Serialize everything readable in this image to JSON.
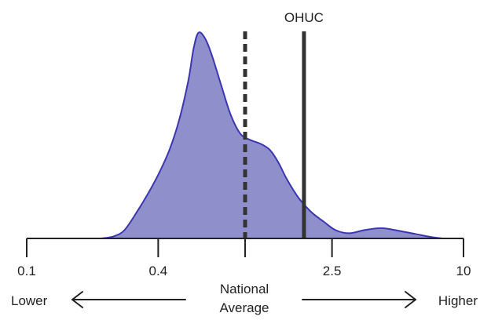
{
  "colors": {
    "density_fill": "#8f8fcc",
    "density_stroke": "#3b36b0",
    "reference_lines": "#333333",
    "axis": "#222222",
    "text": "#222222"
  },
  "chart_data": {
    "type": "area",
    "x_scale": "log",
    "xlim": [
      0.1,
      10
    ],
    "ylim": [
      0,
      1
    ],
    "x_ticks": [
      {
        "value": 0.1,
        "label": "0.1"
      },
      {
        "value": 0.4,
        "label": "0.4"
      },
      {
        "value": 1,
        "label": ""
      },
      {
        "value": 2.5,
        "label": "2.5"
      },
      {
        "value": 10,
        "label": "10"
      }
    ],
    "density": [
      {
        "x": 0.22,
        "y": 0.0
      },
      {
        "x": 0.25,
        "y": 0.01
      },
      {
        "x": 0.28,
        "y": 0.04
      },
      {
        "x": 0.32,
        "y": 0.13
      },
      {
        "x": 0.36,
        "y": 0.22
      },
      {
        "x": 0.4,
        "y": 0.31
      },
      {
        "x": 0.45,
        "y": 0.43
      },
      {
        "x": 0.5,
        "y": 0.58
      },
      {
        "x": 0.55,
        "y": 0.77
      },
      {
        "x": 0.58,
        "y": 0.92
      },
      {
        "x": 0.61,
        "y": 1.0
      },
      {
        "x": 0.65,
        "y": 0.98
      },
      {
        "x": 0.7,
        "y": 0.9
      },
      {
        "x": 0.78,
        "y": 0.74
      },
      {
        "x": 0.86,
        "y": 0.6
      },
      {
        "x": 0.95,
        "y": 0.51
      },
      {
        "x": 1.05,
        "y": 0.48
      },
      {
        "x": 1.18,
        "y": 0.46
      },
      {
        "x": 1.3,
        "y": 0.43
      },
      {
        "x": 1.42,
        "y": 0.37
      },
      {
        "x": 1.55,
        "y": 0.29
      },
      {
        "x": 1.75,
        "y": 0.2
      },
      {
        "x": 2.0,
        "y": 0.13
      },
      {
        "x": 2.3,
        "y": 0.08
      },
      {
        "x": 2.6,
        "y": 0.04
      },
      {
        "x": 3.0,
        "y": 0.025
      },
      {
        "x": 3.5,
        "y": 0.04
      },
      {
        "x": 4.2,
        "y": 0.05
      },
      {
        "x": 5.0,
        "y": 0.038
      },
      {
        "x": 6.0,
        "y": 0.022
      },
      {
        "x": 7.0,
        "y": 0.008
      },
      {
        "x": 8.0,
        "y": 0.0
      }
    ],
    "reference_lines": [
      {
        "x": 1.0,
        "style": "dashed",
        "label": ""
      },
      {
        "x": 1.86,
        "style": "solid",
        "label": "OHUC"
      }
    ],
    "annotations": {
      "left": "Lower",
      "center_line1": "National",
      "center_line2": "Average",
      "right": "Higher"
    }
  }
}
